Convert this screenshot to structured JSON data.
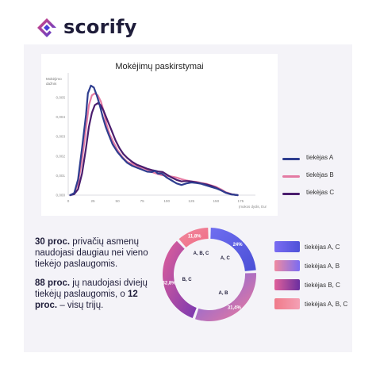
{
  "brand": {
    "name": "scorify"
  },
  "stats": {
    "line1_bold": "30 proc.",
    "line1_rest": " privačių asmenų naudojasi daugiau nei vieno tiekėjo paslaugomis.",
    "line2_bold_a": "88 proc.",
    "line2_mid": " jų naudojasi dviejų tiekėjų paslaugomis, o ",
    "line2_bold_b": "12 proc.",
    "line2_end": " – visų trijų."
  },
  "chart_data": [
    {
      "type": "line",
      "title": "Mokėjimų paskirstymai",
      "ylabel": "Mokėjimo dažnis",
      "xlabel": "Įmokos dydis, Eur",
      "xlim": [
        0,
        190
      ],
      "ylim": [
        0,
        0.006
      ],
      "x_ticks": [
        "0",
        "25",
        "50",
        "75",
        "100",
        "125",
        "150",
        "175"
      ],
      "x_tick_values": [
        0,
        25,
        50,
        75,
        100,
        125,
        150,
        175
      ],
      "y_ticks": [
        "0,000",
        "0,001",
        "0,002",
        "0,003",
        "0,004",
        "0,005"
      ],
      "y_tick_values": [
        0,
        0.001,
        0.002,
        0.003,
        0.004,
        0.005
      ],
      "grid": false,
      "legend_position": "right",
      "series": [
        {
          "name": "tiekėjas A",
          "color": "#2e3d8f",
          "points": [
            [
              2,
              0
            ],
            [
              6,
              0.0001
            ],
            [
              10,
              0.0008
            ],
            [
              14,
              0.0024
            ],
            [
              18,
              0.0041
            ],
            [
              20,
              0.0052
            ],
            [
              23,
              0.0056
            ],
            [
              26,
              0.0055
            ],
            [
              29,
              0.0051
            ],
            [
              32,
              0.0046
            ],
            [
              35,
              0.004
            ],
            [
              38,
              0.0035
            ],
            [
              41,
              0.0031
            ],
            [
              45,
              0.0026
            ],
            [
              50,
              0.0022
            ],
            [
              55,
              0.0019
            ],
            [
              60,
              0.00165
            ],
            [
              65,
              0.0015
            ],
            [
              70,
              0.0014
            ],
            [
              75,
              0.0013
            ],
            [
              80,
              0.0012
            ],
            [
              85,
              0.00118
            ],
            [
              88,
              0.00125
            ],
            [
              91,
              0.0011
            ],
            [
              95,
              0.0011
            ],
            [
              100,
              0.0009
            ],
            [
              105,
              0.00075
            ],
            [
              110,
              0.0006
            ],
            [
              115,
              0.00052
            ],
            [
              120,
              0.0006
            ],
            [
              125,
              0.00065
            ],
            [
              130,
              0.00062
            ],
            [
              135,
              0.00058
            ],
            [
              140,
              0.0005
            ],
            [
              145,
              0.00042
            ],
            [
              150,
              0.00035
            ],
            [
              155,
              0.00025
            ],
            [
              160,
              0.00012
            ],
            [
              165,
              4e-05
            ],
            [
              172,
              0
            ]
          ]
        },
        {
          "name": "tiekėjas B",
          "color": "#e47aa3",
          "points": [
            [
              2,
              0
            ],
            [
              6,
              0.0001
            ],
            [
              10,
              0.0006
            ],
            [
              14,
              0.0018
            ],
            [
              18,
              0.0034
            ],
            [
              21,
              0.0046
            ],
            [
              24,
              0.0051
            ],
            [
              27,
              0.0052
            ],
            [
              30,
              0.0051
            ],
            [
              33,
              0.0048
            ],
            [
              36,
              0.0043
            ],
            [
              39,
              0.0036
            ],
            [
              42,
              0.0031
            ],
            [
              46,
              0.0027
            ],
            [
              50,
              0.0023
            ],
            [
              55,
              0.00195
            ],
            [
              60,
              0.0017
            ],
            [
              65,
              0.0016
            ],
            [
              70,
              0.00148
            ],
            [
              75,
              0.0014
            ],
            [
              80,
              0.0013
            ],
            [
              85,
              0.00118
            ],
            [
              90,
              0.0011
            ],
            [
              95,
              0.00102
            ],
            [
              100,
              0.00098
            ],
            [
              105,
              0.00095
            ],
            [
              110,
              0.0009
            ],
            [
              115,
              0.00082
            ],
            [
              120,
              0.00075
            ],
            [
              125,
              0.0007
            ],
            [
              130,
              0.00068
            ],
            [
              135,
              0.00062
            ],
            [
              140,
              0.00058
            ],
            [
              145,
              0.0005
            ],
            [
              150,
              0.00042
            ],
            [
              155,
              0.0003
            ],
            [
              160,
              0.00015
            ],
            [
              166,
              5e-05
            ],
            [
              172,
              0
            ]
          ]
        },
        {
          "name": "tiekėjas C",
          "color": "#4a1d6e",
          "points": [
            [
              2,
              0
            ],
            [
              6,
              5e-05
            ],
            [
              10,
              0.0003
            ],
            [
              14,
              0.0011
            ],
            [
              18,
              0.0024
            ],
            [
              21,
              0.0035
            ],
            [
              24,
              0.0042
            ],
            [
              27,
              0.0046
            ],
            [
              30,
              0.0047
            ],
            [
              33,
              0.0046
            ],
            [
              36,
              0.0043
            ],
            [
              40,
              0.0038
            ],
            [
              44,
              0.0033
            ],
            [
              48,
              0.0028
            ],
            [
              52,
              0.0024
            ],
            [
              56,
              0.0021
            ],
            [
              60,
              0.0019
            ],
            [
              65,
              0.0017
            ],
            [
              70,
              0.00155
            ],
            [
              75,
              0.00145
            ],
            [
              80,
              0.00135
            ],
            [
              85,
              0.00128
            ],
            [
              88,
              0.00125
            ],
            [
              92,
              0.0012
            ],
            [
              96,
              0.00118
            ],
            [
              100,
              0.00105
            ],
            [
              105,
              0.0009
            ],
            [
              110,
              0.00078
            ],
            [
              115,
              0.0007
            ],
            [
              120,
              0.00072
            ],
            [
              125,
              0.0007
            ],
            [
              130,
              0.00065
            ],
            [
              135,
              0.0006
            ],
            [
              140,
              0.00055
            ],
            [
              145,
              0.00048
            ],
            [
              150,
              0.00038
            ],
            [
              155,
              0.00025
            ],
            [
              160,
              0.00012
            ],
            [
              166,
              4e-05
            ],
            [
              172,
              0
            ]
          ]
        }
      ]
    },
    {
      "type": "pie",
      "donut": true,
      "slices": [
        {
          "name": "tiekėjas A, C",
          "value": 24,
          "label": "24%",
          "inner_label": "A, C",
          "color": "#5a5ce6"
        },
        {
          "name": "tiekėjas A, B",
          "value": 31.4,
          "label": "31,4%",
          "inner_label": "A, B",
          "color": "#c86aa6"
        },
        {
          "name": "tiekėjas B, C",
          "value": 32.8,
          "label": "32,8%",
          "inner_label": "B, C",
          "color": "#9a3fa8"
        },
        {
          "name": "tiekėjas A, B, C",
          "value": 11.8,
          "label": "11,8%",
          "inner_label": "A, B, C",
          "color": "#f0708a"
        }
      ],
      "legend_position": "right"
    }
  ]
}
